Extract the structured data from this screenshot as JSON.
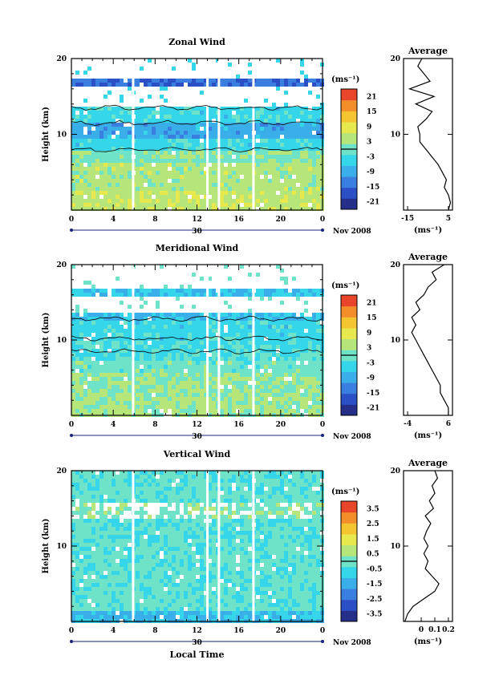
{
  "chart_data": [
    {
      "type": "heatmap",
      "title": "Zonal Wind",
      "ylabel": "Height (km)",
      "ylim": [
        0,
        20
      ],
      "yticks": [
        "10",
        "20"
      ],
      "xlim": [
        0,
        24
      ],
      "xticks": [
        "0",
        "4",
        "8",
        "12",
        "16",
        "20",
        "0"
      ],
      "date_left": "30",
      "date_right": "Nov 2008",
      "colorbar": {
        "unit": "(ms⁻¹)",
        "ticks": [
          "21",
          "15",
          "9",
          "3",
          "-3",
          "-9",
          "-15",
          "-21"
        ],
        "range": [
          -24,
          24
        ],
        "colors": [
          "#252f8a",
          "#2b4fc4",
          "#3a7fe0",
          "#3aaee8",
          "#35d6ea",
          "#6fe3c8",
          "#b6e67a",
          "#e6e84e",
          "#f5c431",
          "#f48e2a",
          "#e8452a"
        ]
      },
      "gap_hours": [
        5.9,
        13.0,
        14.1,
        17.4
      ],
      "bands": [
        {
          "from": 0.0,
          "to": 2.5,
          "value": 5
        },
        {
          "from": 2.5,
          "to": 6.0,
          "value": 4
        },
        {
          "from": 6.0,
          "to": 8.0,
          "value": 1
        },
        {
          "from": 8.0,
          "to": 9.5,
          "value": -4
        },
        {
          "from": 9.5,
          "to": 11.5,
          "value": -9
        },
        {
          "from": 11.5,
          "to": 13.5,
          "value": -4
        },
        {
          "from": 16.5,
          "to": 17.5,
          "value": -15
        }
      ],
      "average_profile": {
        "title": "Average",
        "xlabel": "(ms⁻¹)",
        "xlim": [
          -17,
          7
        ],
        "xticks": [
          "-15",
          "5"
        ],
        "yticks": [
          "10",
          "20"
        ],
        "height_km": [
          0,
          1,
          2,
          3,
          4,
          5,
          6,
          7,
          8,
          9,
          10,
          11,
          12,
          13,
          14,
          15,
          16,
          17,
          18,
          19,
          20
        ],
        "values": [
          5,
          6,
          5,
          3,
          4,
          2,
          0,
          -3,
          -6,
          -9,
          -9,
          -10,
          -6,
          -3,
          -11,
          -2,
          -14,
          -4,
          -7,
          -10,
          -8
        ]
      }
    },
    {
      "type": "heatmap",
      "title": "Meridional Wind",
      "ylabel": "Height (km)",
      "ylim": [
        0,
        20
      ],
      "yticks": [
        "10",
        "20"
      ],
      "xlim": [
        0,
        24
      ],
      "xticks": [
        "0",
        "4",
        "8",
        "12",
        "16",
        "20",
        "0"
      ],
      "date_left": "30",
      "date_right": "Nov 2008",
      "colorbar": {
        "unit": "(ms⁻¹)",
        "ticks": [
          "21",
          "15",
          "9",
          "3",
          "-3",
          "-9",
          "-15",
          "-21"
        ],
        "range": [
          -24,
          24
        ],
        "colors": [
          "#252f8a",
          "#2b4fc4",
          "#3a7fe0",
          "#3aaee8",
          "#35d6ea",
          "#6fe3c8",
          "#b6e67a",
          "#e6e84e",
          "#f5c431",
          "#f48e2a",
          "#e8452a"
        ]
      },
      "gap_hours": [
        5.9,
        13.0,
        14.1,
        17.4
      ],
      "bands": [
        {
          "from": 0.0,
          "to": 2.5,
          "value": 3
        },
        {
          "from": 2.5,
          "to": 5.5,
          "value": 2
        },
        {
          "from": 5.5,
          "to": 7.5,
          "value": 0
        },
        {
          "from": 7.5,
          "to": 10.0,
          "value": -3
        },
        {
          "from": 10.0,
          "to": 12.5,
          "value": -4
        },
        {
          "from": 12.5,
          "to": 13.5,
          "value": -7
        },
        {
          "from": 16.0,
          "to": 16.8,
          "value": -6
        }
      ],
      "average_profile": {
        "title": "Average",
        "xlabel": "(ms⁻¹)",
        "xlim": [
          -5,
          7
        ],
        "xticks": [
          "-4",
          "6"
        ],
        "yticks": [
          "10",
          "20"
        ],
        "height_km": [
          0,
          1,
          2,
          3,
          4,
          5,
          6,
          7,
          8,
          9,
          10,
          11,
          12,
          13,
          14,
          15,
          16,
          17,
          18,
          19,
          20
        ],
        "values": [
          6,
          6,
          5,
          4,
          4,
          3,
          2,
          1,
          0,
          -1,
          -2,
          -3,
          -2,
          -3,
          -1,
          -2,
          0,
          1,
          3,
          2,
          5
        ]
      }
    },
    {
      "type": "heatmap",
      "title": "Vertical Wind",
      "ylabel": "Height (km)",
      "xlabel": "Local Time",
      "ylim": [
        0,
        20
      ],
      "yticks": [
        "10",
        "20"
      ],
      "xlim": [
        0,
        24
      ],
      "xticks": [
        "0",
        "4",
        "8",
        "12",
        "16",
        "20",
        "0"
      ],
      "date_left": "30",
      "date_right": "Nov 2008",
      "colorbar": {
        "unit": "(ms⁻¹)",
        "ticks": [
          "3.5",
          "2.5",
          "1.5",
          "0.5",
          "-0.5",
          "-1.5",
          "-2.5",
          "-3.5"
        ],
        "range": [
          -4,
          4
        ],
        "colors": [
          "#252f8a",
          "#2b4fc4",
          "#3a7fe0",
          "#3aaee8",
          "#35d6ea",
          "#6fe3c8",
          "#b6e67a",
          "#e6e84e",
          "#f5c431",
          "#f48e2a",
          "#e8452a"
        ]
      },
      "gap_hours": [
        5.9,
        13.0,
        14.1,
        17.4
      ],
      "bands": [
        {
          "from": 0.0,
          "to": 1.5,
          "value": -1.2
        },
        {
          "from": 1.5,
          "to": 11.0,
          "value": -0.2
        },
        {
          "from": 11.0,
          "to": 13.5,
          "value": -0.3
        },
        {
          "from": 16.0,
          "to": 20.0,
          "value": -0.2
        }
      ],
      "average_profile": {
        "title": "Average",
        "xlabel": "(ms⁻¹)",
        "xlim": [
          -0.13,
          0.23
        ],
        "xticks": [
          "0",
          "0.1",
          "0.2"
        ],
        "yticks": [
          "10",
          "20"
        ],
        "height_km": [
          0,
          1,
          2,
          3,
          4,
          5,
          6,
          7,
          8,
          9,
          10,
          11,
          12,
          13,
          14,
          15,
          16,
          17,
          18,
          19,
          20
        ],
        "values": [
          -0.12,
          -0.1,
          -0.06,
          0.02,
          0.1,
          0.13,
          0.08,
          0.03,
          0.05,
          0.02,
          0.05,
          0.02,
          0.04,
          0.07,
          0.03,
          0.09,
          0.06,
          0.1,
          0.08,
          0.12,
          0.1
        ]
      }
    }
  ]
}
